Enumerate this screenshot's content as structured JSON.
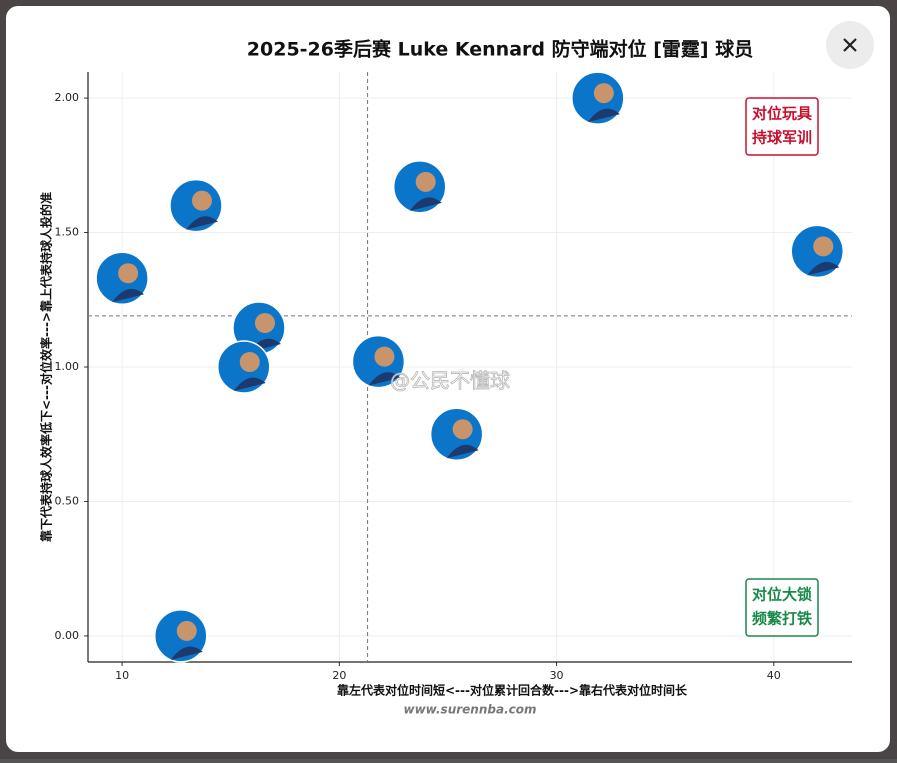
{
  "chart_data": {
    "type": "scatter",
    "title": "2025-26季后赛 Luke Kennard 防守端对位 [雷霆] 球员",
    "x_label": "靠左代表对位时间短<---对位累计回合数--->靠右代表对位时间长",
    "y_label": "靠下代表持球人效率低下<---对位效率--->靠上代表持球人投的准",
    "x": [
      31.9,
      23.7,
      13.4,
      10.0,
      42.0,
      16.3,
      15.6,
      21.8,
      25.4,
      12.7
    ],
    "values": [
      2.0,
      1.67,
      1.6,
      1.33,
      1.43,
      1.145,
      1.0,
      1.02,
      0.75,
      0.0
    ],
    "color": "#0b75c9",
    "xlim": [
      8.43,
      43.6
    ],
    "ylim": [
      -0.097,
      2.097
    ],
    "xticks": [
      10,
      20,
      30,
      40
    ],
    "yticks": [
      {
        "value": 0,
        "label": "0.00"
      },
      {
        "value": 0.5,
        "label": "0.50"
      },
      {
        "value": 1,
        "label": "1.00"
      },
      {
        "value": 1.5,
        "label": "1.50"
      },
      {
        "value": 2,
        "label": "2.00"
      }
    ],
    "grid": true,
    "ref_x": 21.3,
    "ref_y": 1.19,
    "quadrants": [
      {
        "lines": [
          "对位玩具",
          "持球军训"
        ],
        "color": "#c8102e",
        "position": "upper right"
      },
      {
        "lines": [
          "对位大锁",
          "频繁打铁"
        ],
        "color": "#1a8a4a",
        "position": "lower right"
      }
    ],
    "watermark": "@公民不懂球",
    "source": "www.surennba.com"
  }
}
